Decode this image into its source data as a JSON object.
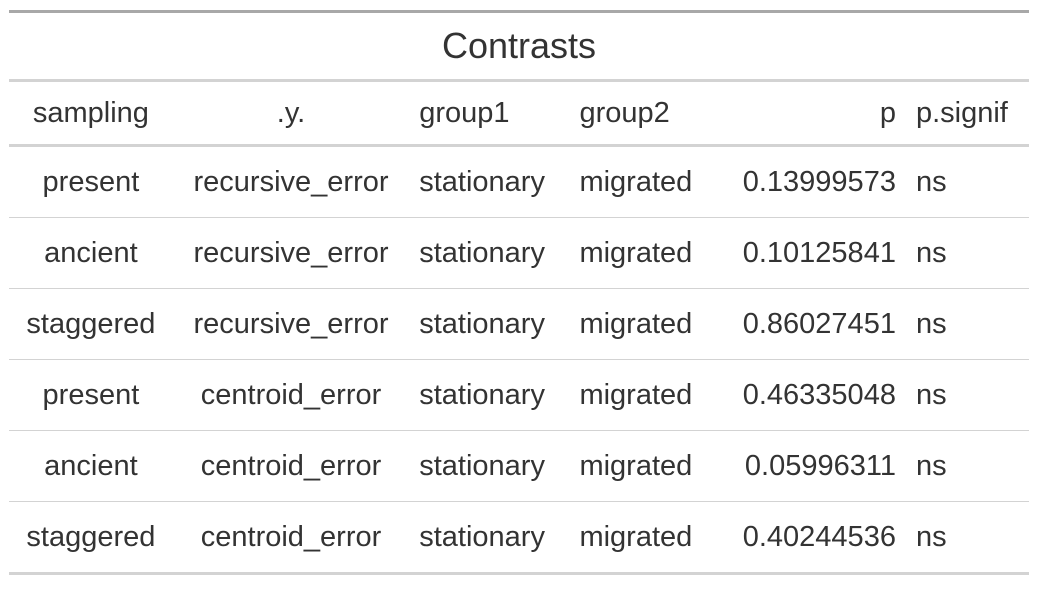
{
  "table": {
    "title": "Contrasts",
    "columns": [
      {
        "key": "sampling",
        "label": "sampling"
      },
      {
        "key": "y",
        "label": ".y."
      },
      {
        "key": "group1",
        "label": "group1"
      },
      {
        "key": "group2",
        "label": "group2"
      },
      {
        "key": "p",
        "label": "p"
      },
      {
        "key": "p_signif",
        "label": "p.signif"
      }
    ],
    "rows": [
      {
        "sampling": "present",
        "y": "recursive_error",
        "group1": "stationary",
        "group2": "migrated",
        "p": "0.13999573",
        "p_signif": "ns"
      },
      {
        "sampling": "ancient",
        "y": "recursive_error",
        "group1": "stationary",
        "group2": "migrated",
        "p": "0.10125841",
        "p_signif": "ns"
      },
      {
        "sampling": "staggered",
        "y": "recursive_error",
        "group1": "stationary",
        "group2": "migrated",
        "p": "0.86027451",
        "p_signif": "ns"
      },
      {
        "sampling": "present",
        "y": "centroid_error",
        "group1": "stationary",
        "group2": "migrated",
        "p": "0.46335048",
        "p_signif": "ns"
      },
      {
        "sampling": "ancient",
        "y": "centroid_error",
        "group1": "stationary",
        "group2": "migrated",
        "p": "0.05996311",
        "p_signif": "ns"
      },
      {
        "sampling": "staggered",
        "y": "centroid_error",
        "group1": "stationary",
        "group2": "migrated",
        "p": "0.40244536",
        "p_signif": "ns"
      }
    ]
  }
}
